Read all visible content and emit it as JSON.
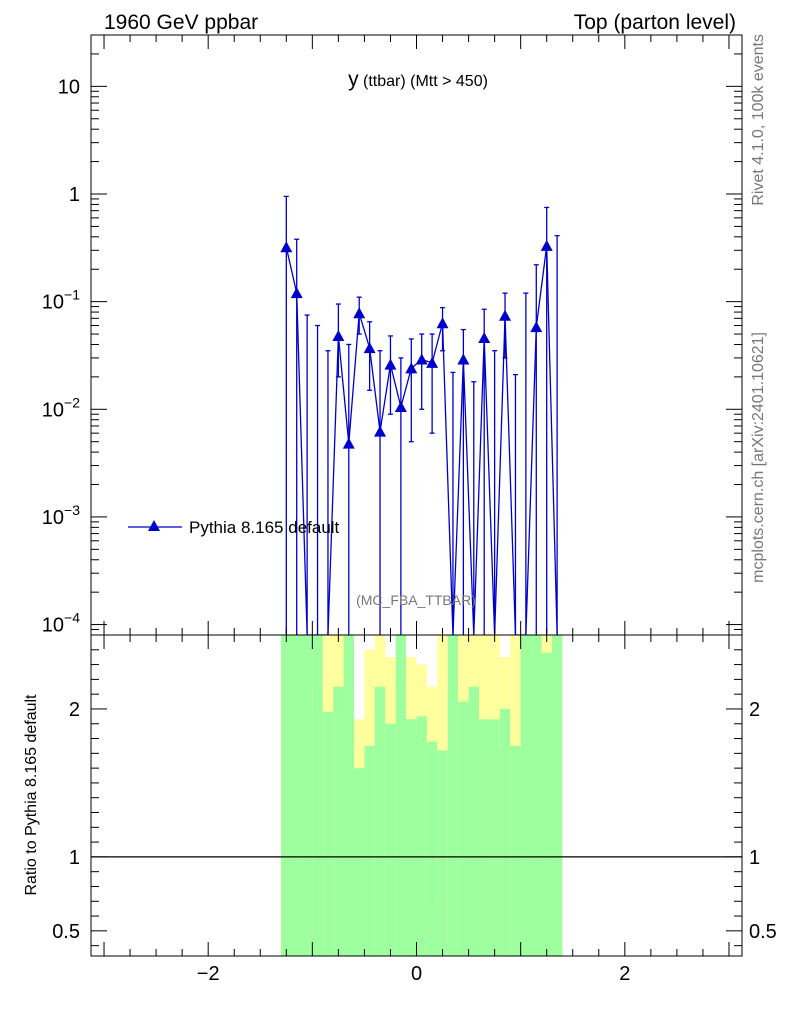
{
  "header": {
    "left": "1960 GeV ppbar",
    "right": "Top (parton level)"
  },
  "side": {
    "rivet": "Rivet 4.1.0,  100k events",
    "mcplots": "mcplots.cern.ch [arXiv:2401.10621]"
  },
  "plot_title": {
    "main": "y",
    "sub": " (ttbar) (Mtt > 450)"
  },
  "watermark": "(MC_FBA_TTBAR)",
  "ratio_ylabel": "Ratio to Pythia 8.165 default",
  "colors": {
    "series": "#0000cc",
    "band_green": "#9dff9d",
    "band_yellow": "#ffff9d"
  },
  "chart_data": [
    {
      "type": "line",
      "panel": "main",
      "yscale": "log",
      "xlim": [
        -3.125,
        3.125
      ],
      "ylim": [
        8e-05,
        30
      ],
      "x_ticks": [
        -2,
        0,
        2
      ],
      "y_ticks": [
        {
          "value": 0.0001,
          "base": "10",
          "exp": "−4"
        },
        {
          "value": 0.001,
          "base": "10",
          "exp": "−3"
        },
        {
          "value": 0.01,
          "base": "10",
          "exp": "−2"
        },
        {
          "value": 0.1,
          "base": "10",
          "exp": "−1"
        },
        {
          "value": 1,
          "base": "1",
          "exp": ""
        },
        {
          "value": 10,
          "base": "10",
          "exp": ""
        }
      ],
      "legend_position": "lower-left",
      "series": [
        {
          "name": "Pythia 8.165 default",
          "points": [
            {
              "x": -1.25,
              "y": 0.32,
              "lo": 6e-05,
              "hi": 0.95
            },
            {
              "x": -1.15,
              "y": 0.12,
              "lo": 6e-05,
              "hi": 0.38
            },
            {
              "x": -1.05,
              "y": 6e-05,
              "lo": 6e-05,
              "hi": 0.075
            },
            {
              "x": -0.95,
              "y": 6e-05,
              "lo": 6e-05,
              "hi": 0.06
            },
            {
              "x": -0.85,
              "y": 6e-05,
              "lo": 6e-05,
              "hi": 0.035
            },
            {
              "x": -0.75,
              "y": 0.048,
              "lo": 0.02,
              "hi": 0.095
            },
            {
              "x": -0.65,
              "y": 0.0048,
              "lo": 6e-05,
              "hi": 0.04
            },
            {
              "x": -0.55,
              "y": 0.078,
              "lo": 0.05,
              "hi": 0.11
            },
            {
              "x": -0.45,
              "y": 0.037,
              "lo": 0.015,
              "hi": 0.065
            },
            {
              "x": -0.35,
              "y": 0.0062,
              "lo": 6e-05,
              "hi": 0.035
            },
            {
              "x": -0.25,
              "y": 0.026,
              "lo": 0.009,
              "hi": 0.048
            },
            {
              "x": -0.15,
              "y": 0.0105,
              "lo": 6e-05,
              "hi": 0.03
            },
            {
              "x": -0.05,
              "y": 0.024,
              "lo": 0.005,
              "hi": 0.045
            },
            {
              "x": 0.05,
              "y": 0.029,
              "lo": 0.01,
              "hi": 0.05
            },
            {
              "x": 0.15,
              "y": 0.027,
              "lo": 0.006,
              "hi": 0.05
            },
            {
              "x": 0.25,
              "y": 0.063,
              "lo": 0.035,
              "hi": 0.088
            },
            {
              "x": 0.35,
              "y": 6e-05,
              "lo": 6e-05,
              "hi": 0.022
            },
            {
              "x": 0.45,
              "y": 0.029,
              "lo": 6e-05,
              "hi": 0.055
            },
            {
              "x": 0.55,
              "y": 6e-05,
              "lo": 6e-05,
              "hi": 0.018
            },
            {
              "x": 0.65,
              "y": 0.046,
              "lo": 6e-05,
              "hi": 0.085
            },
            {
              "x": 0.75,
              "y": 6e-05,
              "lo": 6e-05,
              "hi": 0.035
            },
            {
              "x": 0.85,
              "y": 0.074,
              "lo": 0.03,
              "hi": 0.12
            },
            {
              "x": 0.95,
              "y": 6e-05,
              "lo": 6e-05,
              "hi": 0.021
            },
            {
              "x": 1.05,
              "y": 6e-05,
              "lo": 6e-05,
              "hi": 0.12
            },
            {
              "x": 1.15,
              "y": 0.058,
              "lo": 6e-05,
              "hi": 0.22
            },
            {
              "x": 1.25,
              "y": 0.33,
              "lo": 6e-05,
              "hi": 0.75
            },
            {
              "x": 1.35,
              "y": 6e-05,
              "lo": 6e-05,
              "hi": 0.41
            }
          ]
        }
      ]
    },
    {
      "type": "area",
      "panel": "ratio",
      "xlim": [
        -3.125,
        3.125
      ],
      "ylim": [
        0.33,
        2.5
      ],
      "x_ticks": [
        -2,
        0,
        2
      ],
      "y_ticks": [
        {
          "value": 0.5,
          "label": "0.5"
        },
        {
          "value": 1,
          "label": "1"
        },
        {
          "value": 2,
          "label": "2"
        }
      ],
      "reference_line": 1,
      "bins": [
        {
          "x0": -1.3,
          "x1": -1.2,
          "ylo": 0.3,
          "yhi": 2.6,
          "glo": 0.3,
          "ghi": 2.6
        },
        {
          "x0": -1.2,
          "x1": -1.1,
          "ylo": 0.3,
          "yhi": 2.6,
          "glo": 0.3,
          "ghi": 2.6
        },
        {
          "x0": -1.1,
          "x1": -1.0,
          "ylo": 0.3,
          "yhi": 2.6,
          "glo": 0.3,
          "ghi": 2.6
        },
        {
          "x0": -1.0,
          "x1": -0.9,
          "ylo": 0.3,
          "yhi": 2.6,
          "glo": 0.3,
          "ghi": 2.6
        },
        {
          "x0": -0.9,
          "x1": -0.8,
          "ylo": 0.3,
          "yhi": 2.6,
          "glo": 0.3,
          "ghi": 1.98
        },
        {
          "x0": -0.8,
          "x1": -0.7,
          "ylo": 0.3,
          "yhi": 2.6,
          "glo": 0.3,
          "ghi": 2.15
        },
        {
          "x0": -0.7,
          "x1": -0.6,
          "ylo": 0.3,
          "yhi": 2.6,
          "glo": 0.3,
          "ghi": 2.6
        },
        {
          "x0": -0.6,
          "x1": -0.5,
          "ylo": 0.64,
          "yhi": 1.93,
          "glo": 0.3,
          "ghi": 1.6
        },
        {
          "x0": -0.5,
          "x1": -0.4,
          "ylo": 0.3,
          "yhi": 2.4,
          "glo": 0.3,
          "ghi": 1.75
        },
        {
          "x0": -0.4,
          "x1": -0.3,
          "ylo": 0.3,
          "yhi": 2.5,
          "glo": 0.3,
          "ghi": 2.15
        },
        {
          "x0": -0.3,
          "x1": -0.2,
          "ylo": 0.3,
          "yhi": 2.35,
          "glo": 0.3,
          "ghi": 1.9
        },
        {
          "x0": -0.2,
          "x1": -0.1,
          "ylo": 0.3,
          "yhi": 2.6,
          "glo": 0.3,
          "ghi": 2.6
        },
        {
          "x0": -0.1,
          "x1": 0.0,
          "ylo": 0.3,
          "yhi": 2.35,
          "glo": 0.3,
          "ghi": 1.93
        },
        {
          "x0": 0.0,
          "x1": 0.1,
          "ylo": 0.3,
          "yhi": 2.3,
          "glo": 0.3,
          "ghi": 1.95
        },
        {
          "x0": 0.1,
          "x1": 0.2,
          "ylo": 0.3,
          "yhi": 2.15,
          "glo": 0.3,
          "ghi": 1.78
        },
        {
          "x0": 0.2,
          "x1": 0.3,
          "ylo": 0.7,
          "yhi": 2.6,
          "glo": 0.3,
          "ghi": 1.72
        },
        {
          "x0": 0.3,
          "x1": 0.4,
          "ylo": 0.3,
          "yhi": 2.6,
          "glo": 0.3,
          "ghi": 2.6
        },
        {
          "x0": 0.4,
          "x1": 0.5,
          "ylo": 0.3,
          "yhi": 2.6,
          "glo": 0.3,
          "ghi": 2.05
        },
        {
          "x0": 0.5,
          "x1": 0.6,
          "ylo": 0.3,
          "yhi": 2.6,
          "glo": 0.3,
          "ghi": 2.15
        },
        {
          "x0": 0.6,
          "x1": 0.7,
          "ylo": 0.3,
          "yhi": 2.5,
          "glo": 0.3,
          "ghi": 1.93
        },
        {
          "x0": 0.7,
          "x1": 0.8,
          "ylo": 0.3,
          "yhi": 2.6,
          "glo": 0.3,
          "ghi": 1.93
        },
        {
          "x0": 0.8,
          "x1": 0.9,
          "ylo": 0.3,
          "yhi": 2.35,
          "glo": 0.3,
          "ghi": 2.0
        },
        {
          "x0": 0.9,
          "x1": 1.0,
          "ylo": 0.3,
          "yhi": 2.6,
          "glo": 0.3,
          "ghi": 1.75
        },
        {
          "x0": 1.0,
          "x1": 1.1,
          "ylo": 0.3,
          "yhi": 2.4,
          "glo": 0.3,
          "ghi": 2.6
        },
        {
          "x0": 1.1,
          "x1": 1.2,
          "ylo": 0.3,
          "yhi": 2.6,
          "glo": 0.3,
          "ghi": 2.6
        },
        {
          "x0": 1.2,
          "x1": 1.3,
          "ylo": 0.3,
          "yhi": 2.6,
          "glo": 0.3,
          "ghi": 2.38
        },
        {
          "x0": 1.3,
          "x1": 1.4,
          "ylo": 0.3,
          "yhi": 2.6,
          "glo": 0.3,
          "ghi": 2.6
        }
      ]
    }
  ]
}
